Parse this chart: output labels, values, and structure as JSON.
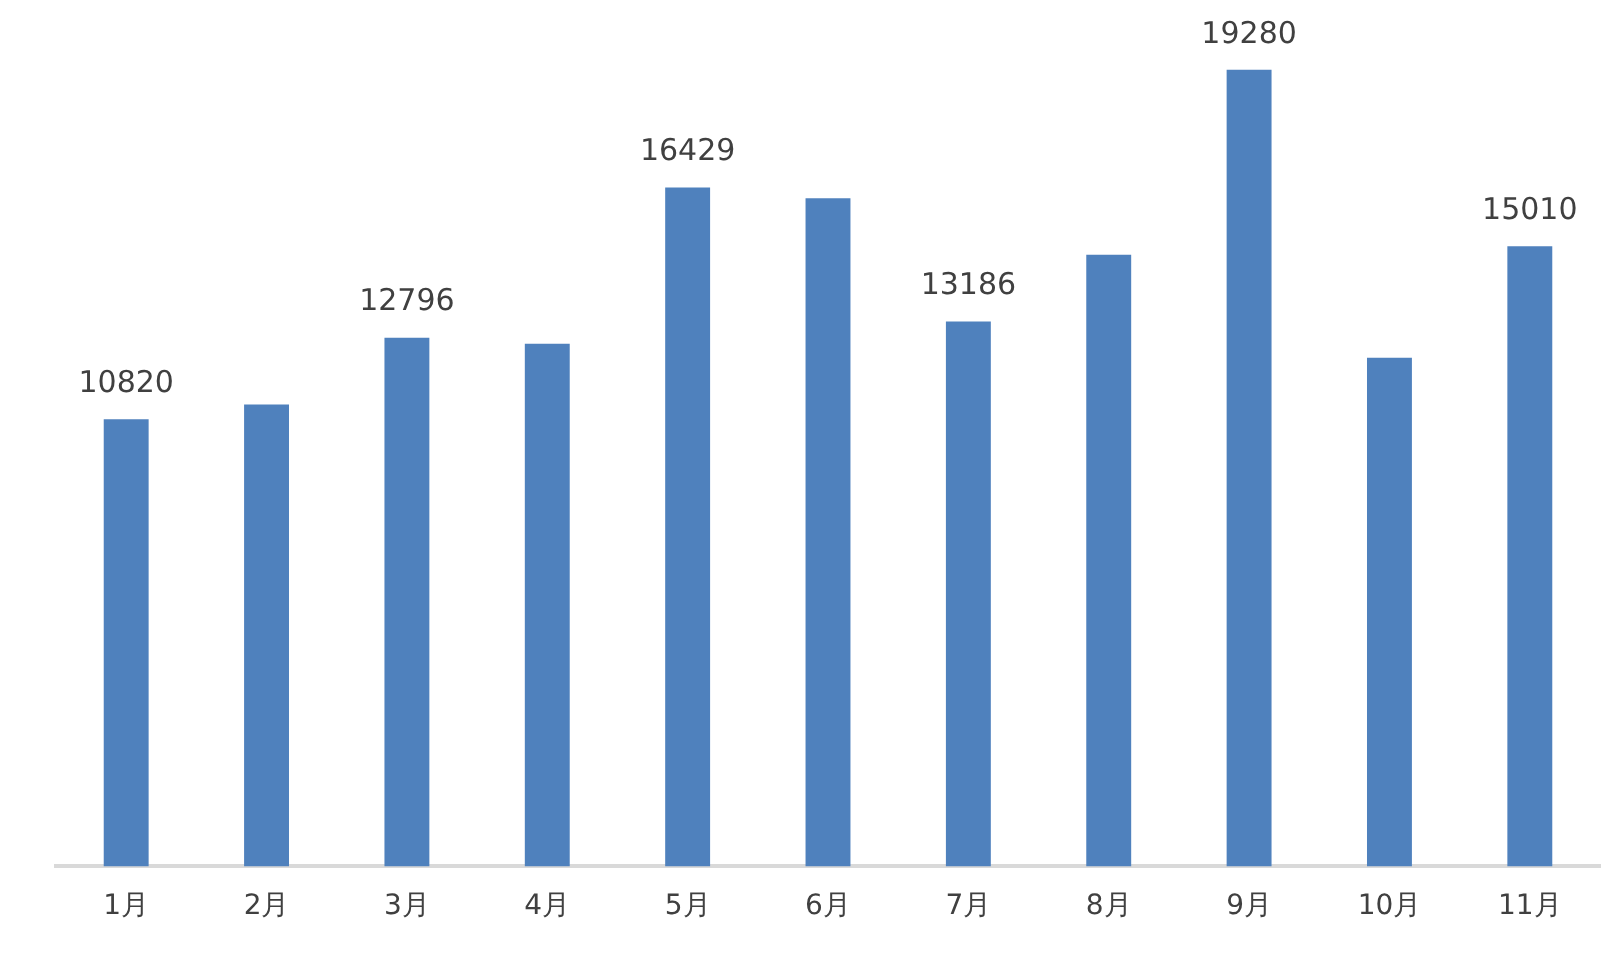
{
  "chart_data": {
    "type": "bar",
    "categories": [
      "1月",
      "2月",
      "3月",
      "4月",
      "5月",
      "6月",
      "7月",
      "8月",
      "9月",
      "10月",
      "11月"
    ],
    "values": [
      10820,
      11180,
      12796,
      12650,
      16429,
      16170,
      13186,
      14800,
      19280,
      12310,
      15010
    ],
    "value_labels": [
      "10820",
      null,
      "12796",
      null,
      "16429",
      null,
      "13186",
      null,
      "19280",
      null,
      "15010"
    ],
    "color": "#4f81bd",
    "tick_labels": "x",
    "grid": false,
    "legend": false
  }
}
